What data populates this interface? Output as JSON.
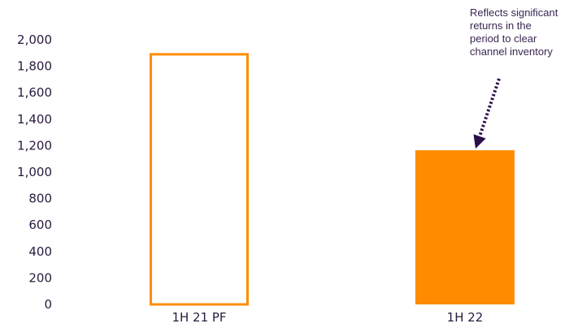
{
  "chart_data": {
    "type": "bar",
    "categories": [
      "1H 21 PF",
      "1H 22"
    ],
    "values": [
      1890,
      1165
    ],
    "ylim": [
      0,
      2000
    ],
    "yticks": [
      "0",
      "200",
      "400",
      "600",
      "800",
      "1,000",
      "1,200",
      "1,400",
      "1,600",
      "1,800",
      "2,000"
    ],
    "bar_styles": [
      "outline",
      "filled"
    ],
    "bar_color": "#ff8c00",
    "annotation": "Reflects significant\nreturns in the\nperiod to clear\nchannel inventory",
    "annotation_target": "1H 22",
    "arrow_color": "#2a0f4a",
    "text_color": "#2a1a3e",
    "grid": false,
    "legend": "none"
  }
}
